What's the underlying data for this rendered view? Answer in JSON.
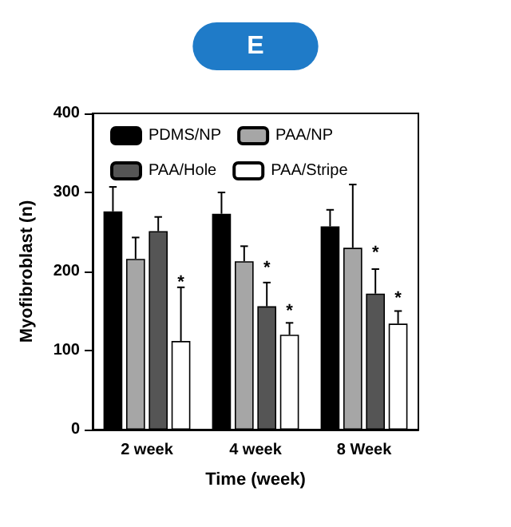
{
  "chart_data": {
    "type": "bar",
    "title": "E",
    "xlabel": "Time (week)",
    "ylabel": "Myofibroblast (n)",
    "categories": [
      "2 week",
      "4 week",
      "8 Week"
    ],
    "series": [
      {
        "name": "PDMS/NP",
        "color": "#000000",
        "values": [
          276,
          273,
          257
        ],
        "errors": [
          [
            276,
            307
          ],
          [
            273,
            300
          ],
          [
            257,
            278
          ]
        ]
      },
      {
        "name": "PAA/NP",
        "color": "#a6a6a6",
        "values": [
          216,
          213,
          230
        ],
        "errors": [
          [
            216,
            243
          ],
          [
            213,
            232
          ],
          [
            230,
            310
          ]
        ]
      },
      {
        "name": "PAA/Hole",
        "color": "#555555",
        "values": [
          251,
          156,
          172
        ],
        "errors": [
          [
            251,
            269
          ],
          [
            156,
            186
          ],
          [
            172,
            203
          ]
        ]
      },
      {
        "name": "PAA/Stripe",
        "color": "#ffffff",
        "values": [
          112,
          120,
          134
        ],
        "errors": [
          [
            112,
            180
          ],
          [
            120,
            135
          ],
          [
            134,
            150
          ]
        ]
      }
    ],
    "annotations": [
      {
        "text": "*",
        "x": "2 week",
        "y": 186
      },
      {
        "text": "*",
        "x": "4 week",
        "y": 204
      },
      {
        "text": "*",
        "x": "4 week",
        "y": 150
      },
      {
        "text": "*",
        "x": "8 Week",
        "y": 223
      },
      {
        "text": "*",
        "x": "8 Week",
        "y": 166
      }
    ],
    "ylim": [
      0,
      400
    ],
    "yticks": [
      0,
      100,
      200,
      300,
      400
    ],
    "grid": false,
    "legend": "top left"
  }
}
